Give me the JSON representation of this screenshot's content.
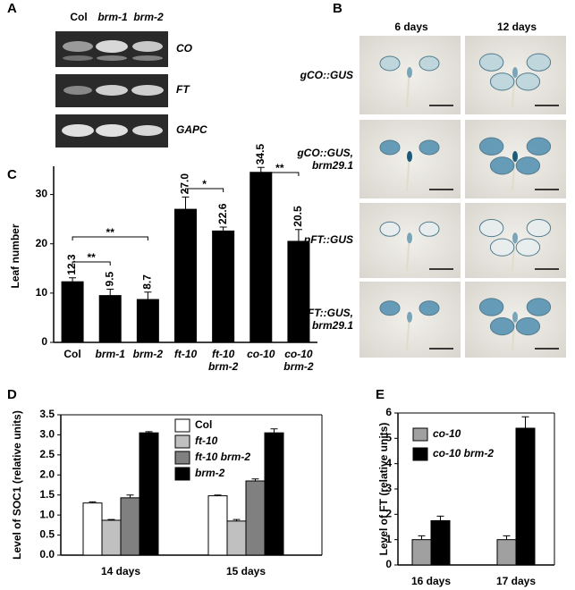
{
  "panel_labels": [
    "A",
    "B",
    "C",
    "D",
    "E"
  ],
  "panel_a": {
    "lanes": [
      "Col",
      "brm-1",
      "brm-2"
    ],
    "genes": [
      "CO",
      "FT",
      "GAPC"
    ]
  },
  "panel_b": {
    "columns": [
      "6 days",
      "12 days"
    ],
    "rows": [
      "gCO::GUS",
      "gCO::GUS,\nbrm29.1",
      "pFT::GUS",
      "pFT::GUS,\nbrm29.1"
    ]
  },
  "chart_data": [
    {
      "type": "bar",
      "ylabel": "Leaf number",
      "categories": [
        "Col",
        "brm-1",
        "brm-2",
        "ft-10",
        "ft-10\nbrm-2",
        "co-10",
        "co-10\nbrm-2"
      ],
      "values": [
        12.3,
        9.5,
        8.7,
        27.0,
        22.6,
        34.5,
        20.5
      ],
      "value_labels": [
        "12.3",
        "9.5",
        "8.7",
        "27.0",
        "22.6",
        "34.5",
        "20.5"
      ],
      "errors": [
        0.8,
        1.3,
        1.5,
        2.5,
        0.8,
        1.0,
        2.4
      ],
      "color": "#000000",
      "ylim": [
        0,
        35
      ],
      "yticks": [
        0,
        10,
        20,
        30
      ],
      "annotations": [
        "**",
        "**",
        "*",
        "**"
      ]
    },
    {
      "type": "bar",
      "ylabel": "Level of SOC1 (relative units)",
      "categories": [
        "14 days",
        "15 days"
      ],
      "series": [
        {
          "name": "Col",
          "color": "#ffffff",
          "values": [
            1.3,
            1.48
          ],
          "errors": [
            0.03,
            0.02
          ]
        },
        {
          "name": "ft-10",
          "color": "#c0c0c0",
          "values": [
            0.87,
            0.85
          ],
          "errors": [
            0.02,
            0.04
          ]
        },
        {
          "name": "ft-10 brm-2",
          "color": "#808080",
          "values": [
            1.43,
            1.85
          ],
          "errors": [
            0.07,
            0.05
          ]
        },
        {
          "name": "brm-2",
          "color": "#000000",
          "values": [
            3.05,
            3.05
          ],
          "errors": [
            0.03,
            0.1
          ]
        }
      ],
      "ylim": [
        0,
        3.5
      ],
      "yticks": [
        {
          "value": 0,
          "label": "0.0"
        },
        0.5,
        {
          "value": 1,
          "label": "1.0"
        },
        1.5,
        {
          "value": 2,
          "label": "2.0"
        },
        2.5,
        {
          "value": 3,
          "label": "3.0"
        },
        3.5
      ],
      "legend": "top-right"
    },
    {
      "type": "bar",
      "ylabel": "Level of FT (relative units)",
      "categories": [
        "16 days",
        "17 days"
      ],
      "series": [
        {
          "name": "co-10",
          "color": "#a0a0a0",
          "values": [
            1.0,
            1.0
          ],
          "errors": [
            0.15,
            0.15
          ]
        },
        {
          "name": "co-10 brm-2",
          "color": "#000000",
          "values": [
            1.75,
            5.4
          ],
          "errors": [
            0.18,
            0.45
          ]
        }
      ],
      "ylim": [
        0,
        6
      ],
      "yticks": [
        0,
        1,
        2,
        3,
        4,
        5,
        6
      ],
      "legend": "top-left"
    }
  ]
}
